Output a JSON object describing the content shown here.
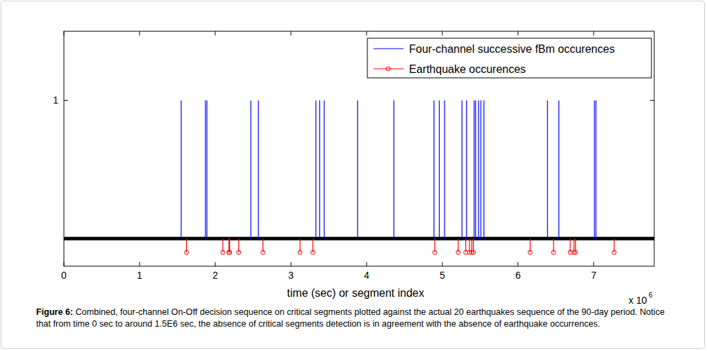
{
  "chart_data": {
    "type": "stem",
    "xlabel": "time (sec) or segment index",
    "x_scale_text": "x 10",
    "x_scale_exponent": "6",
    "caption_label": "Figure 6:",
    "caption": "Combined, four-channel On-Off decision sequence on critical segments plotted against the actual 20 earthquakes sequence of the 90-day period. Notice that from time 0 sec to around 1.5E6 sec, the absence of critical segments detection is in agreement with the absence of earthquake occurrences.",
    "xlim": [
      0,
      7.8
    ],
    "xticks": [
      0,
      1,
      2,
      3,
      4,
      5,
      6,
      7
    ],
    "ylim": [
      -0.2,
      1.5
    ],
    "yticks": [
      1
    ],
    "legend": "northeast",
    "series": [
      {
        "name": "Four-channel successive fBm occurences",
        "color": "#0000ff",
        "marker": "none",
        "x": [
          1.55,
          1.87,
          1.89,
          2.47,
          2.57,
          3.33,
          3.38,
          3.44,
          3.88,
          4.36,
          4.89,
          4.96,
          5.03,
          5.26,
          5.32,
          5.42,
          5.44,
          5.48,
          5.51,
          5.55,
          6.39,
          6.54,
          7.01,
          7.03
        ],
        "values": [
          1,
          1,
          1,
          1,
          1,
          1,
          1,
          1,
          1,
          1,
          1,
          1,
          1,
          1,
          1,
          1,
          1,
          1,
          1,
          1,
          1,
          1,
          1,
          1
        ]
      },
      {
        "name": "Earthquake occurences",
        "color": "#ff0000",
        "marker": "circle",
        "x": [
          1.62,
          2.1,
          2.18,
          2.19,
          2.31,
          2.63,
          3.12,
          3.29,
          4.9,
          5.21,
          5.31,
          5.36,
          5.39,
          5.41,
          6.16,
          6.47,
          6.69,
          6.74,
          6.76,
          7.27
        ],
        "values": [
          -0.1,
          -0.1,
          -0.1,
          -0.1,
          -0.1,
          -0.1,
          -0.1,
          -0.1,
          -0.1,
          -0.1,
          -0.1,
          -0.1,
          -0.1,
          -0.1,
          -0.1,
          -0.1,
          -0.1,
          -0.1,
          -0.1,
          -0.1
        ]
      }
    ]
  }
}
